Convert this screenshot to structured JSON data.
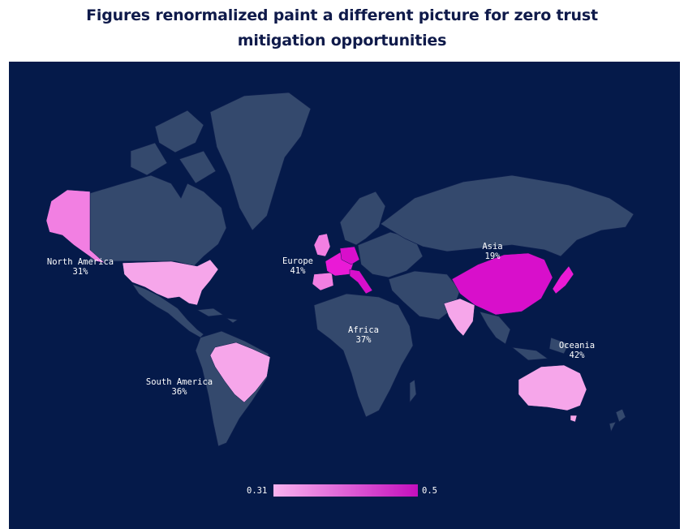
{
  "title_line1": "Figures renormalized paint a different picture for zero trust",
  "title_line2": "mitigation opportunities",
  "colors": {
    "background": "#051a4a",
    "land": "#34496d",
    "scale_low": "#f9b3ef",
    "scale_high": "#c40fbd"
  },
  "regions": [
    {
      "name": "North America",
      "value": "31%"
    },
    {
      "name": "Europe",
      "value": "41%"
    },
    {
      "name": "Asia",
      "value": "19%"
    },
    {
      "name": "Africa",
      "value": "37%"
    },
    {
      "name": "South America",
      "value": "36%"
    },
    {
      "name": "Oceania",
      "value": "42%"
    }
  ],
  "legend": {
    "min_label": "0.31",
    "max_label": "0.5",
    "min": 0.31,
    "max": 0.5
  }
}
